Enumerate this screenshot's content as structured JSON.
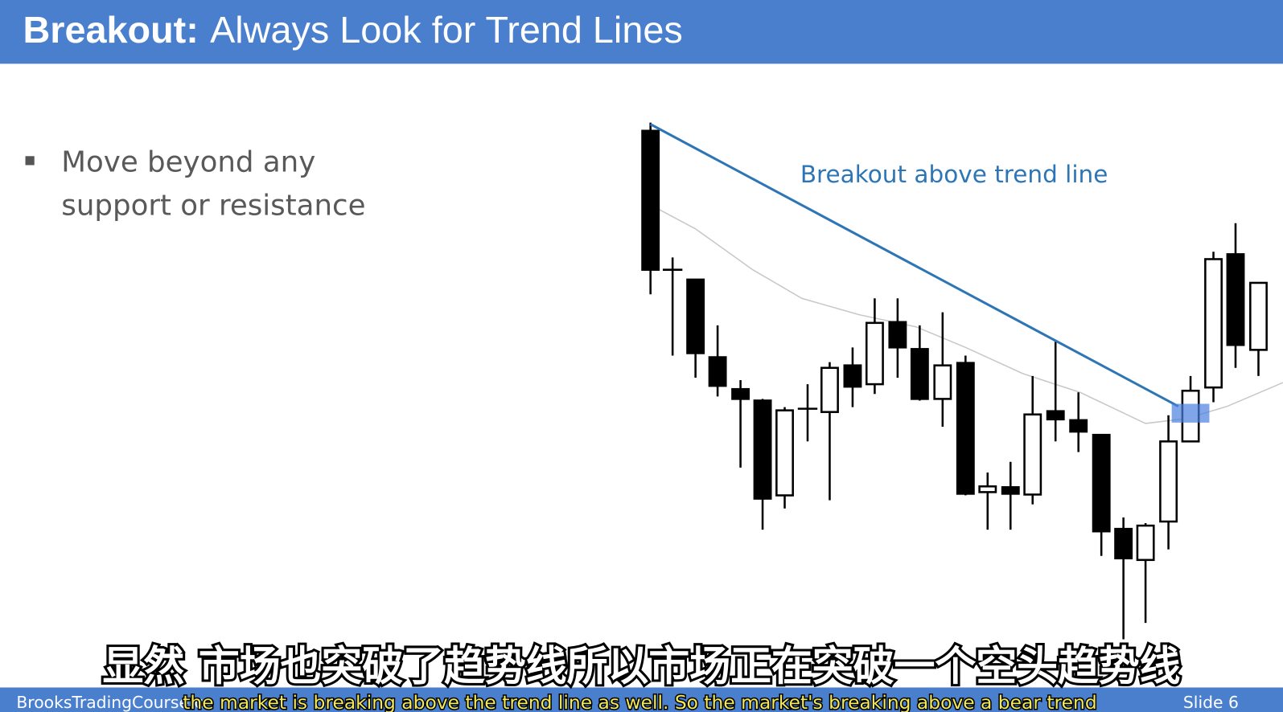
{
  "header": {
    "title_bold": "Breakout:",
    "title": "Always Look for Trend Lines"
  },
  "bullets": [
    {
      "lines": [
        "Move beyond any",
        "support or resistance"
      ]
    }
  ],
  "annotation": "Breakout above trend line",
  "subtitles": {
    "zh": "显然 市场也突破了趋势线所以市场正在突破一个空头趋势线",
    "en": "the market is breaking above the trend line as well. So the market's breaking above a bear trend"
  },
  "footer": {
    "site": "BrooksTradingCourse.c",
    "slide": "Slide 6"
  }
}
